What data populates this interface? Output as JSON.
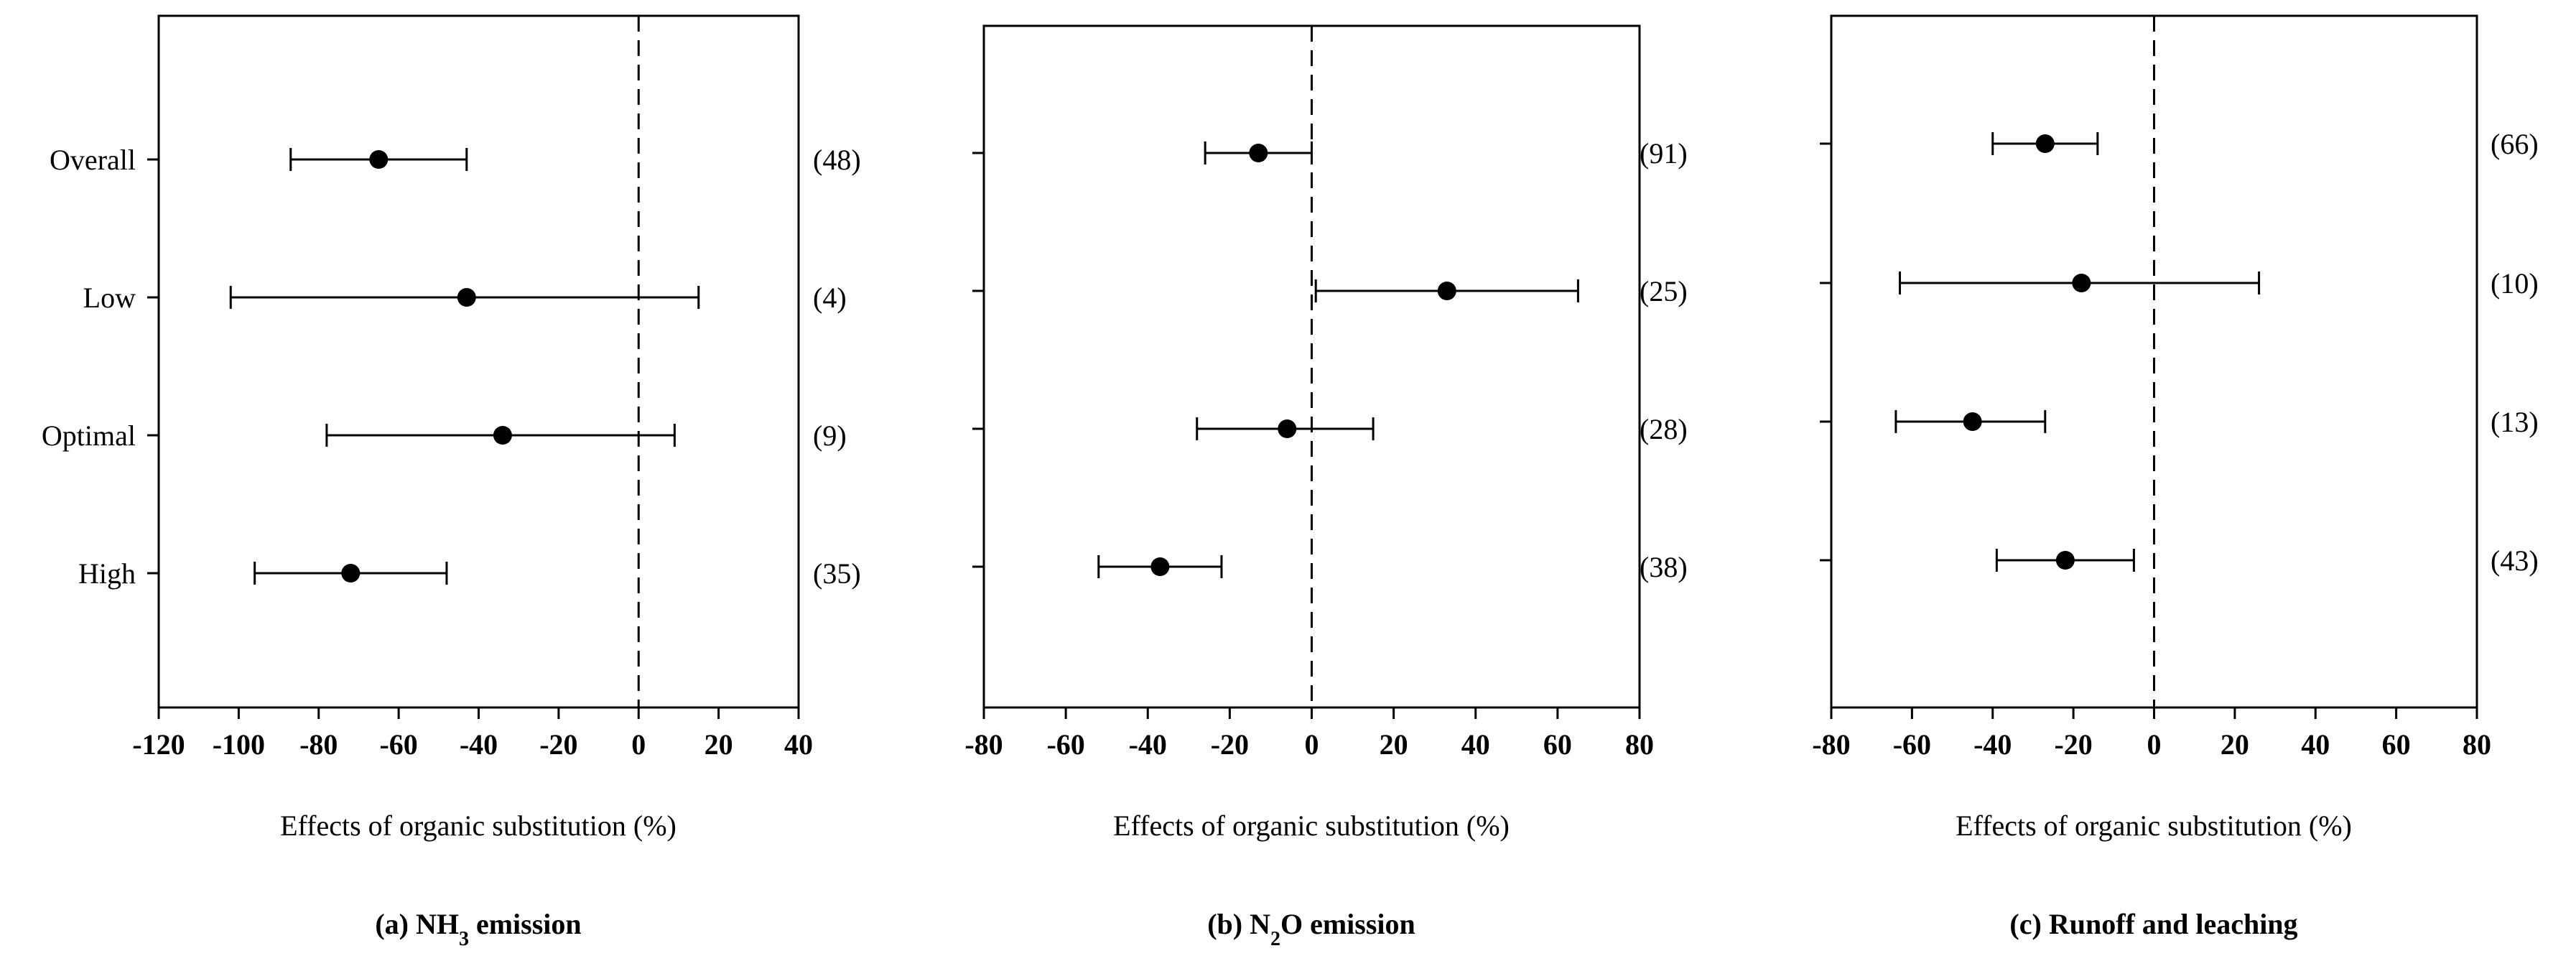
{
  "chart_data": [
    {
      "type": "scatter",
      "panel": "a",
      "title": "(a) NH3 emission",
      "title_main": "NH",
      "title_sub": "3",
      "title_rest": " emission",
      "title_prefix": "(a) ",
      "xlabel": "Effects of organic substitution (%)",
      "xlim": [
        -120,
        40
      ],
      "xticks": [
        -120,
        -100,
        -80,
        -60,
        -40,
        -20,
        0,
        20,
        40
      ],
      "categories": [
        "Overall",
        "Low",
        "Optimal",
        "High"
      ],
      "show_category_labels": true,
      "points": [
        {
          "category": "Overall",
          "mean": -65,
          "lower": -87,
          "upper": -43,
          "n": "(48)"
        },
        {
          "category": "Low",
          "mean": -43,
          "lower": -102,
          "upper": 15,
          "n": "(4)"
        },
        {
          "category": "Optimal",
          "mean": -34,
          "lower": -78,
          "upper": 9,
          "n": "(9)"
        },
        {
          "category": "High",
          "mean": -72,
          "lower": -96,
          "upper": -48,
          "n": "(35)"
        }
      ],
      "reference_line": 0
    },
    {
      "type": "scatter",
      "panel": "b",
      "title": "(b) N2O emission",
      "title_prefix": "(b) ",
      "title_main": "N",
      "title_sub": "2",
      "title_rest": "O emission",
      "xlabel": "Effects of organic substitution (%)",
      "xlim": [
        -80,
        80
      ],
      "xticks": [
        -80,
        -60,
        -40,
        -20,
        0,
        20,
        40,
        60,
        80
      ],
      "categories": [
        "Overall",
        "Low",
        "Optimal",
        "High"
      ],
      "show_category_labels": false,
      "points": [
        {
          "category": "Overall",
          "mean": -13,
          "lower": -26,
          "upper": 0,
          "n": "(91)"
        },
        {
          "category": "Low",
          "mean": 33,
          "lower": 1,
          "upper": 65,
          "n": "(25)"
        },
        {
          "category": "Optimal",
          "mean": -6,
          "lower": -28,
          "upper": 15,
          "n": "(28)"
        },
        {
          "category": "High",
          "mean": -37,
          "lower": -52,
          "upper": -22,
          "n": "(38)"
        }
      ],
      "reference_line": 0
    },
    {
      "type": "scatter",
      "panel": "c",
      "title": "(c) Runoff and leaching",
      "title_prefix": "(c) ",
      "title_main": "Runoff and leaching",
      "title_sub": "",
      "title_rest": "",
      "xlabel": "Effects of organic substitution (%)",
      "xlim": [
        -80,
        80
      ],
      "xticks": [
        -80,
        -60,
        -40,
        -20,
        0,
        20,
        40,
        60,
        80
      ],
      "categories": [
        "Overall",
        "Low",
        "Optimal",
        "High"
      ],
      "show_category_labels": false,
      "points": [
        {
          "category": "Overall",
          "mean": -27,
          "lower": -40,
          "upper": -14,
          "n": "(66)"
        },
        {
          "category": "Low",
          "mean": -18,
          "lower": -63,
          "upper": 26,
          "n": "(10)"
        },
        {
          "category": "Optimal",
          "mean": -45,
          "lower": -64,
          "upper": -27,
          "n": "(13)"
        },
        {
          "category": "High",
          "mean": -22,
          "lower": -39,
          "upper": -5,
          "n": "(43)"
        }
      ],
      "reference_line": 0
    }
  ]
}
